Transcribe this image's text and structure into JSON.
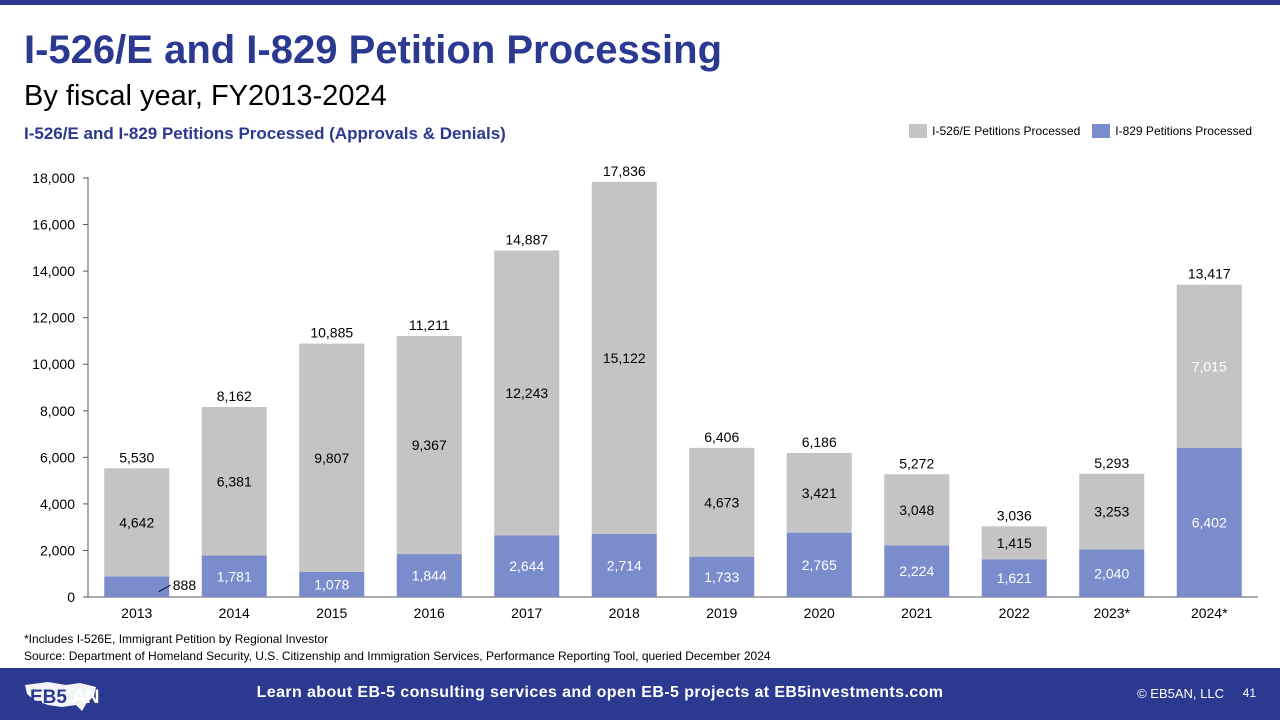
{
  "header": {
    "title": "I-526/E and I-829 Petition Processing",
    "subtitle": "By fiscal year, FY2013-2024",
    "chart_title": "I-526/E and I-829 Petitions Processed (Approvals & Denials)"
  },
  "colors": {
    "accent": "#2b3990",
    "i526": "#c4c4c4",
    "i829": "#7a8ccc"
  },
  "chart_data": {
    "type": "bar",
    "stacked": true,
    "title": "I-526/E and I-829 Petitions Processed (Approvals & Denials)",
    "categories": [
      "2013",
      "2014",
      "2015",
      "2016",
      "2017",
      "2018",
      "2019",
      "2020",
      "2021",
      "2022",
      "2023*",
      "2024*"
    ],
    "series": [
      {
        "name": "I-829 Petitions Processed",
        "values": [
          888,
          1781,
          1078,
          1844,
          2644,
          2714,
          1733,
          2765,
          2224,
          1621,
          2040,
          6402
        ]
      },
      {
        "name": "I-526/E Petitions Processed",
        "values": [
          4642,
          6381,
          9807,
          9367,
          12243,
          15122,
          4673,
          3421,
          3048,
          1415,
          3253,
          7015
        ]
      }
    ],
    "totals": [
      5530,
      8162,
      10885,
      11211,
      14887,
      17836,
      6406,
      6186,
      5272,
      3036,
      5293,
      13417
    ],
    "ylim": [
      0,
      18000
    ],
    "yticks": [
      0,
      2000,
      4000,
      6000,
      8000,
      10000,
      12000,
      14000,
      16000,
      18000
    ],
    "legend_position": "top-right",
    "grid": false
  },
  "legend": [
    "I-526/E Petitions Processed",
    "I-829 Petitions Processed"
  ],
  "notes": {
    "footnote": "*Includes I-526E, Immigrant Petition by Regional Investor",
    "source": "Source: Department of Homeland Security, U.S. Citizenship and Immigration Services, Performance Reporting Tool, queried December 2024"
  },
  "footer": {
    "logo_text": "EB5AN",
    "cta": "Learn about EB-5 consulting services and open EB-5 projects at EB5investments.com",
    "copyright": "© EB5AN, LLC",
    "page": "41"
  }
}
